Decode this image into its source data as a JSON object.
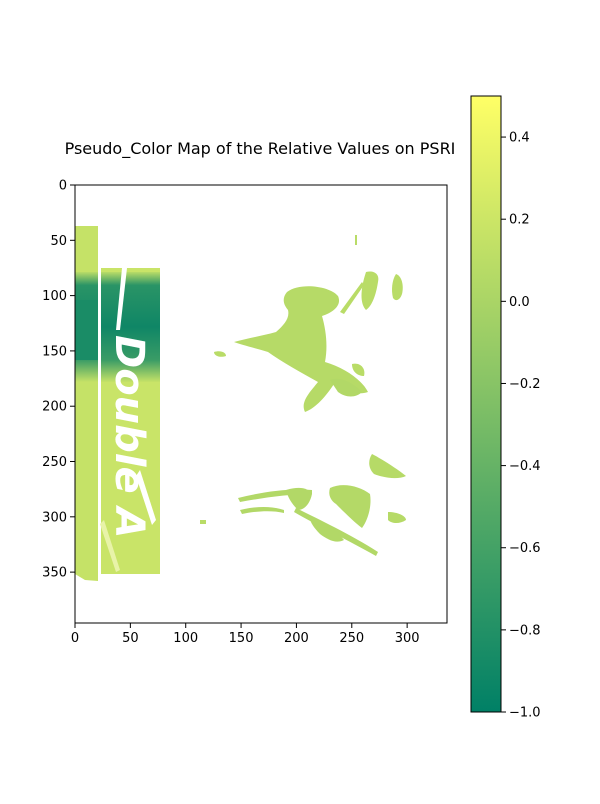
{
  "chart_data": {
    "type": "heatmap",
    "title": "Pseudo_Color Map of the Relative Values on PSRI",
    "xlabel": "",
    "ylabel": "",
    "x_ticks": [
      0,
      50,
      100,
      150,
      200,
      250,
      300
    ],
    "y_ticks": [
      0,
      50,
      100,
      150,
      200,
      250,
      300,
      350
    ],
    "xlim": [
      0,
      336
    ],
    "ylim": [
      396,
      0
    ],
    "colorbar": {
      "colormap": "summer",
      "range": [
        -1.0,
        0.5
      ],
      "ticks": [
        0.4,
        0.2,
        0.0,
        -0.2,
        -0.4,
        -0.6,
        -0.8,
        -1.0
      ],
      "tick_labels": [
        "0.4",
        "0.2",
        "0.0",
        "−0.2",
        "−0.4",
        "−0.6",
        "−0.8",
        "−1.0"
      ],
      "color_low": "#008066",
      "color_high": "#ffff66"
    },
    "image_content": {
      "label_text": "Double A",
      "label_region_x": [
        0,
        76
      ],
      "label_region_y": [
        40,
        360
      ],
      "leaf_regions_x": [
        140,
        300
      ],
      "typical_leaf_value": -0.05,
      "dark_band_value": -0.9
    }
  }
}
